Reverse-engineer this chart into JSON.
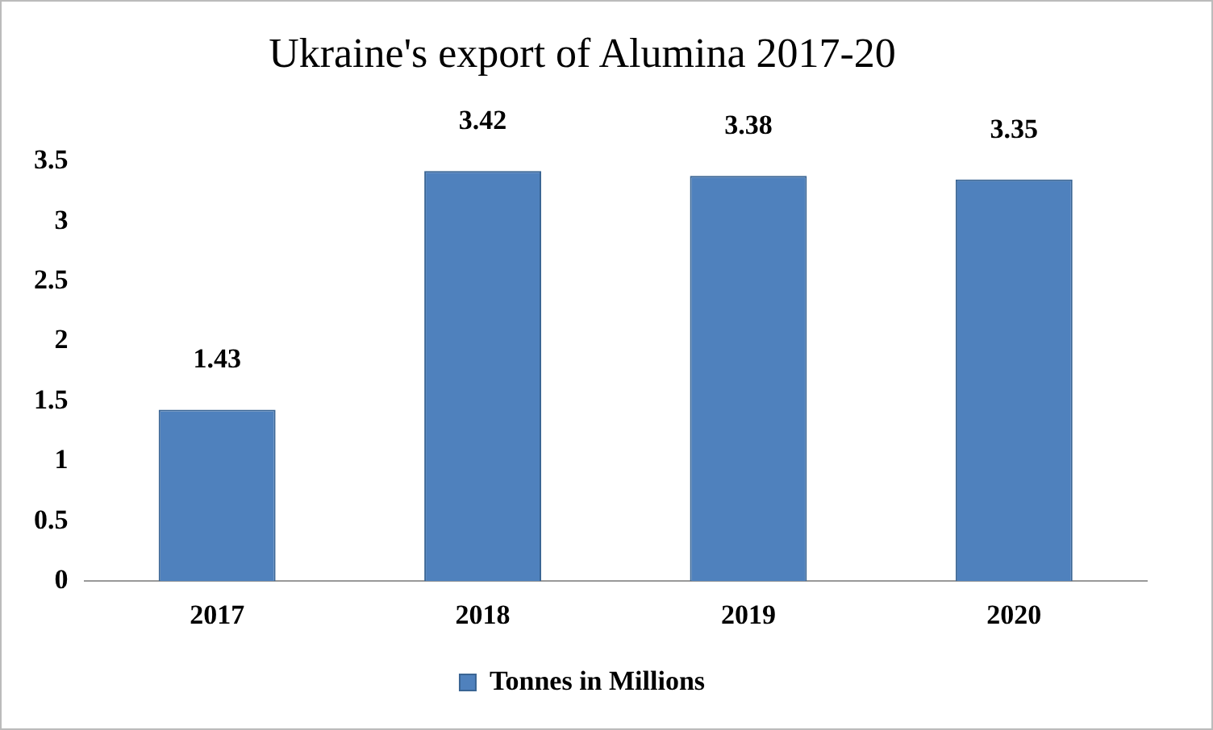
{
  "chart_data": {
    "type": "bar",
    "title": "Ukraine's export of Alumina 2017-20",
    "categories": [
      "2017",
      "2018",
      "2019",
      "2020"
    ],
    "series": [
      {
        "name": "Tonnes in Millions",
        "color": "#4f81bd",
        "values": [
          1.43,
          3.42,
          3.38,
          3.35
        ]
      }
    ],
    "ylim": [
      0,
      3.5
    ],
    "yticks": [
      0,
      0.5,
      1,
      1.5,
      2,
      2.5,
      3,
      3.5
    ],
    "grid": false,
    "legend": "bottom",
    "data_labels": true
  }
}
